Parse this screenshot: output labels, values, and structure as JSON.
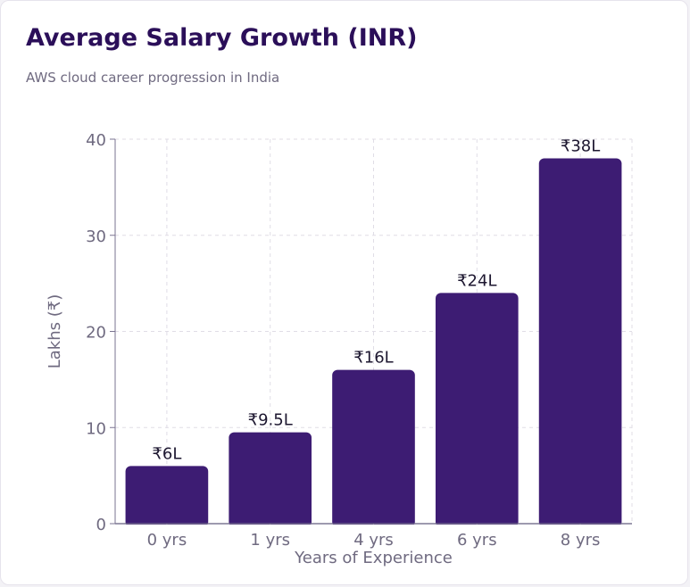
{
  "colors": {
    "bar": "#3d1c73",
    "title": "#2b0f59",
    "text": "#6f6a80",
    "grid": "#e0dde6",
    "axis": "#7a7390"
  },
  "chart_data": {
    "type": "bar",
    "title": "Average Salary Growth (INR)",
    "subtitle": "AWS cloud career progression in India",
    "xlabel": "Years of Experience",
    "ylabel": "Lakhs (₹)",
    "categories": [
      "0 yrs",
      "1 yrs",
      "4 yrs",
      "6 yrs",
      "8 yrs"
    ],
    "values": [
      6,
      9.5,
      16,
      24,
      38
    ],
    "data_labels": [
      "₹6L",
      "₹9.5L",
      "₹16L",
      "₹24L",
      "₹38L"
    ],
    "ylim": [
      0,
      40
    ],
    "yticks": [
      0,
      10,
      20,
      30,
      40
    ],
    "grid": true
  }
}
